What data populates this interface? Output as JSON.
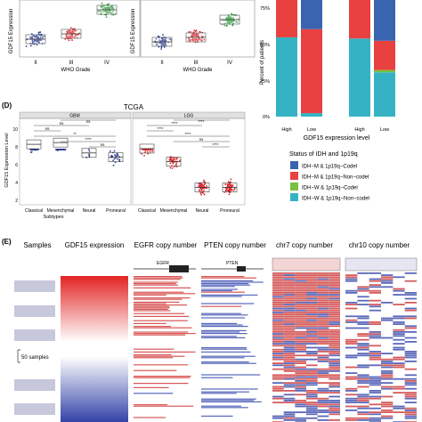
{
  "panelA": {
    "ylabel": "GDF15 Expression",
    "xlabel": "WHO Grade",
    "categories": [
      "II",
      "III",
      "IV"
    ],
    "colors": [
      "#2b3d8f",
      "#d9232a",
      "#2e9e3a"
    ]
  },
  "panelB": {
    "ylabel": "GDF15 Expression",
    "xlabel": "WHO Grade",
    "categories": [
      "II",
      "III",
      "IV"
    ],
    "colors": [
      "#2b3d8f",
      "#d9232a",
      "#2e9e3a"
    ]
  },
  "panelC": {
    "ylabel": "Percent of patients",
    "xlabel": "GDF15 expression level",
    "yticks": [
      "0%",
      "25%",
      "50%",
      "75%"
    ],
    "xticks": [
      "High",
      "Low",
      "High",
      "Low"
    ],
    "legend_title": "Status of IDH and 1p19q",
    "legend": [
      {
        "label": "IDH−M & 1p19q−Codel",
        "color": "#3a63b0"
      },
      {
        "label": "IDH−M & 1p19q−Non−codel",
        "color": "#e9413f"
      },
      {
        "label": "IDH−W & 1p19q−Codel",
        "color": "#79c043"
      },
      {
        "label": "IDH−W & 1p19q−Non−codel",
        "color": "#35b3c4"
      }
    ]
  },
  "panelD": {
    "panel_letter": "(D)",
    "title": "TCGA",
    "ylabel": "GDF15 Expression Level",
    "xlabel": "Subtypes",
    "facets": [
      "GBM",
      "LGG"
    ],
    "categories": [
      "Classical",
      "Mesenchymal",
      "Neural",
      "Proneural"
    ],
    "yticks": [
      "10",
      "8",
      "6",
      "4",
      "2"
    ],
    "sig": [
      "ns",
      "ns",
      "**",
      "****",
      "ns",
      "ns",
      "****",
      "****",
      "****",
      "ns",
      "****",
      "****"
    ]
  },
  "panelE": {
    "panel_letter": "(E)",
    "headers": [
      "Samples",
      "GDF15 expression",
      "EGFR copy number",
      "PTEN copy number",
      "chr7 copy number",
      "chr10 copy number"
    ],
    "gene_labels": [
      "EGFR",
      "PTEN"
    ],
    "scale_label": "50 samples"
  },
  "chart_data": [
    {
      "type": "scatter",
      "panel": "A",
      "categories": [
        "II",
        "III",
        "IV"
      ],
      "series": [
        {
          "values": [
            3.0,
            4.0,
            8.5
          ]
        }
      ]
    },
    {
      "type": "scatter",
      "panel": "B",
      "categories": [
        "II",
        "III",
        "IV"
      ],
      "series": [
        {
          "values": [
            1.5,
            2.0,
            4.0
          ]
        }
      ]
    },
    {
      "type": "bar",
      "panel": "C",
      "categories": [
        "High",
        "Low",
        "High",
        "Low"
      ],
      "ylim": [
        0,
        100
      ],
      "series": [
        {
          "name": "IDH−M & 1p19q−Codel",
          "values": [
            0,
            25,
            0,
            35
          ]
        },
        {
          "name": "IDH−M & 1p19q−Non−codel",
          "values": [
            32,
            72,
            33,
            25
          ]
        },
        {
          "name": "IDH−W & 1p19q−Codel",
          "values": [
            0,
            0,
            0,
            2
          ]
        },
        {
          "name": "IDH−W & 1p19q−Non−codel",
          "values": [
            68,
            3,
            67,
            38
          ]
        }
      ]
    },
    {
      "type": "scatter",
      "panel": "D",
      "facets": [
        "GBM",
        "LGG"
      ],
      "categories": [
        "Classical",
        "Mesenchymal",
        "Neural",
        "Proneural"
      ],
      "ylim": [
        1,
        11
      ],
      "series": [
        {
          "name": "GBM",
          "values": [
            8.0,
            8.2,
            7.0,
            6.5
          ]
        },
        {
          "name": "LGG",
          "values": [
            7.5,
            6.0,
            3.0,
            3.0
          ]
        }
      ]
    }
  ]
}
